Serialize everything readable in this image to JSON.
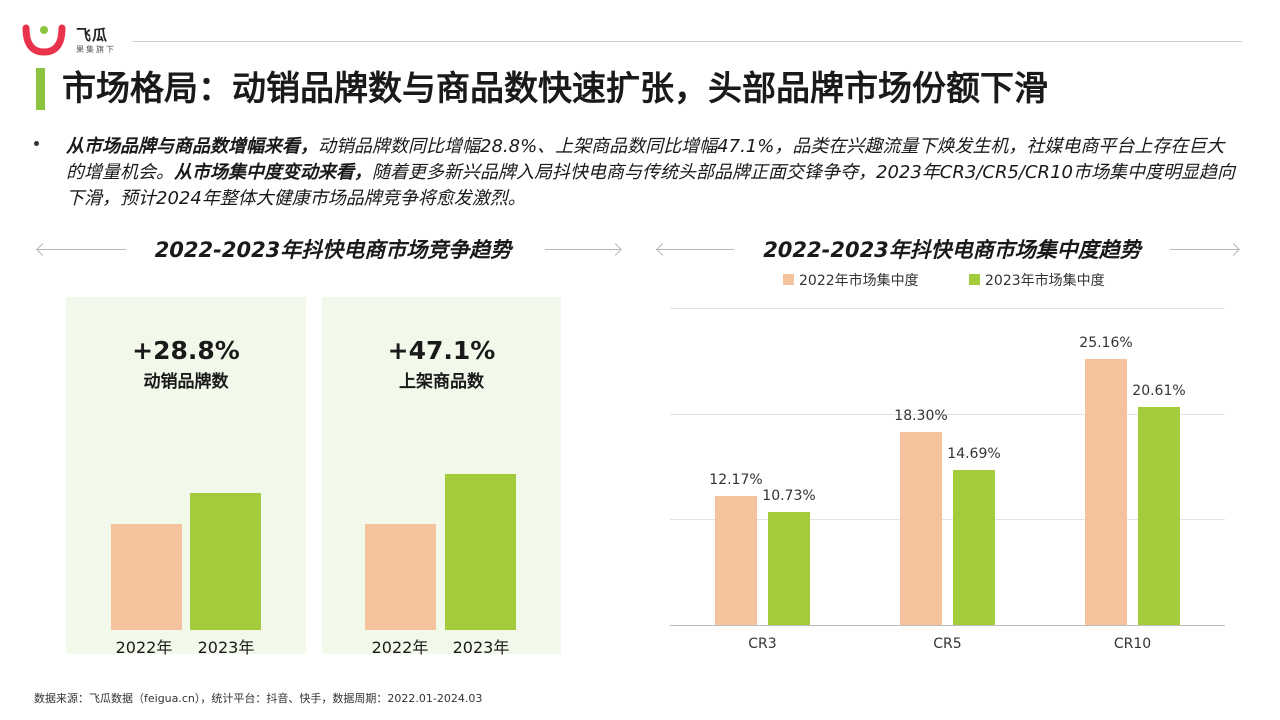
{
  "header": {
    "brand_name": "飞瓜",
    "brand_sub": "果集旗下",
    "title": "市场格局：动销品牌数与商品数快速扩张，头部品牌市场份额下滑"
  },
  "body": {
    "lead1": "从市场品牌与商品数增幅来看，",
    "text1": "动销品牌数同比增幅28.8%、上架商品数同比增幅47.1%，品类在兴趣流量下焕发生机，社媒电商平台上存在巨大的增量机会。",
    "lead2": "从市场集中度变动来看，",
    "text2": "随着更多新兴品牌入局抖快电商与传统头部品牌正面交锋争夺，2023年CR3/CR5/CR10市场集中度明显趋向下滑，预计2024年整体大健康市场品牌竞争将愈发激烈。"
  },
  "left_section": {
    "title": "2022-2023年抖快电商市场竞争趋势",
    "panels": [
      {
        "pct": "+28.8%",
        "label": "动销品牌数",
        "year_a": "2022年",
        "year_b": "2023年"
      },
      {
        "pct": "+47.1%",
        "label": "上架商品数",
        "year_a": "2022年",
        "year_b": "2023年"
      }
    ]
  },
  "right_section": {
    "title": "2022-2023年抖快电商市场集中度趋势"
  },
  "colors": {
    "accent_green": "#a3cc3c",
    "accent_peach": "#f5c29e",
    "title_bar": "#8cc43f",
    "logo_red": "#e8334a"
  },
  "chart_data": [
    {
      "type": "bar",
      "categories": [
        "2022年",
        "2023年"
      ],
      "values": [
        100,
        128.8
      ],
      "label": "动销品牌数",
      "annotation": "+28.8%"
    },
    {
      "type": "bar",
      "categories": [
        "2022年",
        "2023年"
      ],
      "values": [
        100,
        147.1
      ],
      "label": "上架商品数",
      "annotation": "+47.1%"
    },
    {
      "type": "bar",
      "title": "2022-2023年抖快电商市场集中度趋势",
      "categories": [
        "CR3",
        "CR5",
        "CR10"
      ],
      "series": [
        {
          "name": "2022年市场集中度",
          "values": [
            12.17,
            18.3,
            25.16
          ],
          "labels": [
            "12.17%",
            "18.30%",
            "25.16%"
          ]
        },
        {
          "name": "2023年市场集中度",
          "values": [
            10.73,
            14.69,
            20.61
          ],
          "labels": [
            "10.73%",
            "14.69%",
            "20.61%"
          ]
        }
      ],
      "ylim": [
        0,
        30
      ],
      "grid": true,
      "legend": "top"
    }
  ],
  "footer": "数据来源：飞瓜数据（feigua.cn），统计平台：抖音、快手，数据周期：2022.01-2024.03"
}
